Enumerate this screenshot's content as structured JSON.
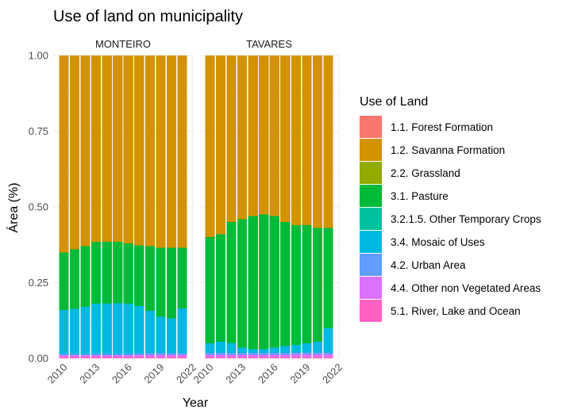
{
  "chart_data": {
    "type": "bar",
    "stacked": true,
    "title": "Use of land on municipality",
    "xlabel": "Year",
    "ylabel": "Área (%)",
    "ylim": [
      0,
      1
    ],
    "yticks": [
      "0.00",
      "0.25",
      "0.50",
      "0.75",
      "1.00"
    ],
    "xlim": [
      2009,
      2022
    ],
    "xticks": [
      "2010",
      "2013",
      "2016",
      "2019",
      "2022"
    ],
    "grid": true,
    "legend": {
      "title": "Use of Land",
      "position": "right",
      "entries": [
        {
          "name": "1.1. Forest Formation",
          "color": "#F8766D"
        },
        {
          "name": "1.2. Savanna Formation",
          "color": "#D39200"
        },
        {
          "name": "2.2. Grassland",
          "color": "#93AA00"
        },
        {
          "name": "3.1. Pasture",
          "color": "#00BA38"
        },
        {
          "name": "3.2.1.5. Other Temporary Crops",
          "color": "#00C19F"
        },
        {
          "name": "3.4. Mosaic of Uses",
          "color": "#00B9E3"
        },
        {
          "name": "4.2. Urban Area",
          "color": "#619CFF"
        },
        {
          "name": "4.4. Other non Vegetated Areas",
          "color": "#DB72FB"
        },
        {
          "name": "5.1. River, Lake and Ocean",
          "color": "#FF61C3"
        }
      ]
    },
    "years": [
      2010,
      2011,
      2012,
      2013,
      2014,
      2015,
      2016,
      2017,
      2018,
      2019,
      2020,
      2021
    ],
    "facets": [
      {
        "name": "MONTEIRO",
        "series": [
          {
            "name": "5.1. River, Lake and Ocean",
            "values": [
              0.004,
              0.004,
              0.004,
              0.004,
              0.004,
              0.004,
              0.004,
              0.004,
              0.004,
              0.004,
              0.004,
              0.004
            ]
          },
          {
            "name": "4.4. Other non Vegetated Areas",
            "values": [
              0.007,
              0.007,
              0.007,
              0.007,
              0.007,
              0.007,
              0.007,
              0.008,
              0.008,
              0.008,
              0.008,
              0.008
            ]
          },
          {
            "name": "4.2. Urban Area",
            "values": [
              0.004,
              0.004,
              0.004,
              0.004,
              0.004,
              0.004,
              0.004,
              0.004,
              0.005,
              0.005,
              0.005,
              0.005
            ]
          },
          {
            "name": "3.4. Mosaic of Uses",
            "values": [
              0.145,
              0.148,
              0.155,
              0.165,
              0.165,
              0.167,
              0.165,
              0.157,
              0.14,
              0.12,
              0.115,
              0.148
            ]
          },
          {
            "name": "3.2.1.5. Other Temporary Crops",
            "values": [
              0,
              0,
              0,
              0,
              0,
              0,
              0,
              0,
              0,
              0,
              0,
              0
            ]
          },
          {
            "name": "3.1. Pasture",
            "values": [
              0.19,
              0.197,
              0.2,
              0.205,
              0.205,
              0.203,
              0.2,
              0.2,
              0.213,
              0.228,
              0.233,
              0.2
            ]
          },
          {
            "name": "2.2. Grassland",
            "values": [
              0,
              0,
              0,
              0,
              0,
              0,
              0,
              0,
              0,
              0,
              0,
              0
            ]
          },
          {
            "name": "1.2. Savanna Formation",
            "values": [
              0.65,
              0.64,
              0.63,
              0.615,
              0.615,
              0.615,
              0.62,
              0.627,
              0.63,
              0.635,
              0.635,
              0.635
            ]
          },
          {
            "name": "1.1. Forest Formation",
            "values": [
              0,
              0,
              0,
              0,
              0,
              0,
              0,
              0,
              0,
              0,
              0,
              0
            ]
          }
        ]
      },
      {
        "name": "TAVARES",
        "series": [
          {
            "name": "5.1. River, Lake and Ocean",
            "values": [
              0.004,
              0.004,
              0.004,
              0.004,
              0.004,
              0.004,
              0.004,
              0.004,
              0.004,
              0.004,
              0.004,
              0.004
            ]
          },
          {
            "name": "4.4. Other non Vegetated Areas",
            "values": [
              0.008,
              0.008,
              0.008,
              0.008,
              0.008,
              0.008,
              0.008,
              0.008,
              0.009,
              0.009,
              0.009,
              0.009
            ]
          },
          {
            "name": "4.2. Urban Area",
            "values": [
              0.006,
              0.006,
              0.006,
              0.006,
              0.006,
              0.006,
              0.006,
              0.006,
              0.006,
              0.006,
              0.006,
              0.006
            ]
          },
          {
            "name": "3.4. Mosaic of Uses",
            "values": [
              0.032,
              0.037,
              0.032,
              0.017,
              0.012,
              0.012,
              0.017,
              0.022,
              0.026,
              0.031,
              0.036,
              0.081
            ]
          },
          {
            "name": "3.2.1.5. Other Temporary Crops",
            "values": [
              0,
              0,
              0,
              0,
              0,
              0,
              0,
              0,
              0,
              0,
              0,
              0
            ]
          },
          {
            "name": "3.1. Pasture",
            "values": [
              0.35,
              0.355,
              0.4,
              0.425,
              0.44,
              0.445,
              0.435,
              0.41,
              0.395,
              0.39,
              0.375,
              0.33
            ]
          },
          {
            "name": "2.2. Grassland",
            "values": [
              0,
              0,
              0,
              0,
              0,
              0,
              0,
              0,
              0,
              0,
              0,
              0
            ]
          },
          {
            "name": "1.2. Savanna Formation",
            "values": [
              0.6,
              0.59,
              0.55,
              0.54,
              0.53,
              0.525,
              0.53,
              0.55,
              0.56,
              0.56,
              0.57,
              0.57
            ]
          },
          {
            "name": "1.1. Forest Formation",
            "values": [
              0,
              0,
              0,
              0,
              0,
              0,
              0,
              0,
              0,
              0,
              0,
              0
            ]
          }
        ]
      }
    ]
  }
}
